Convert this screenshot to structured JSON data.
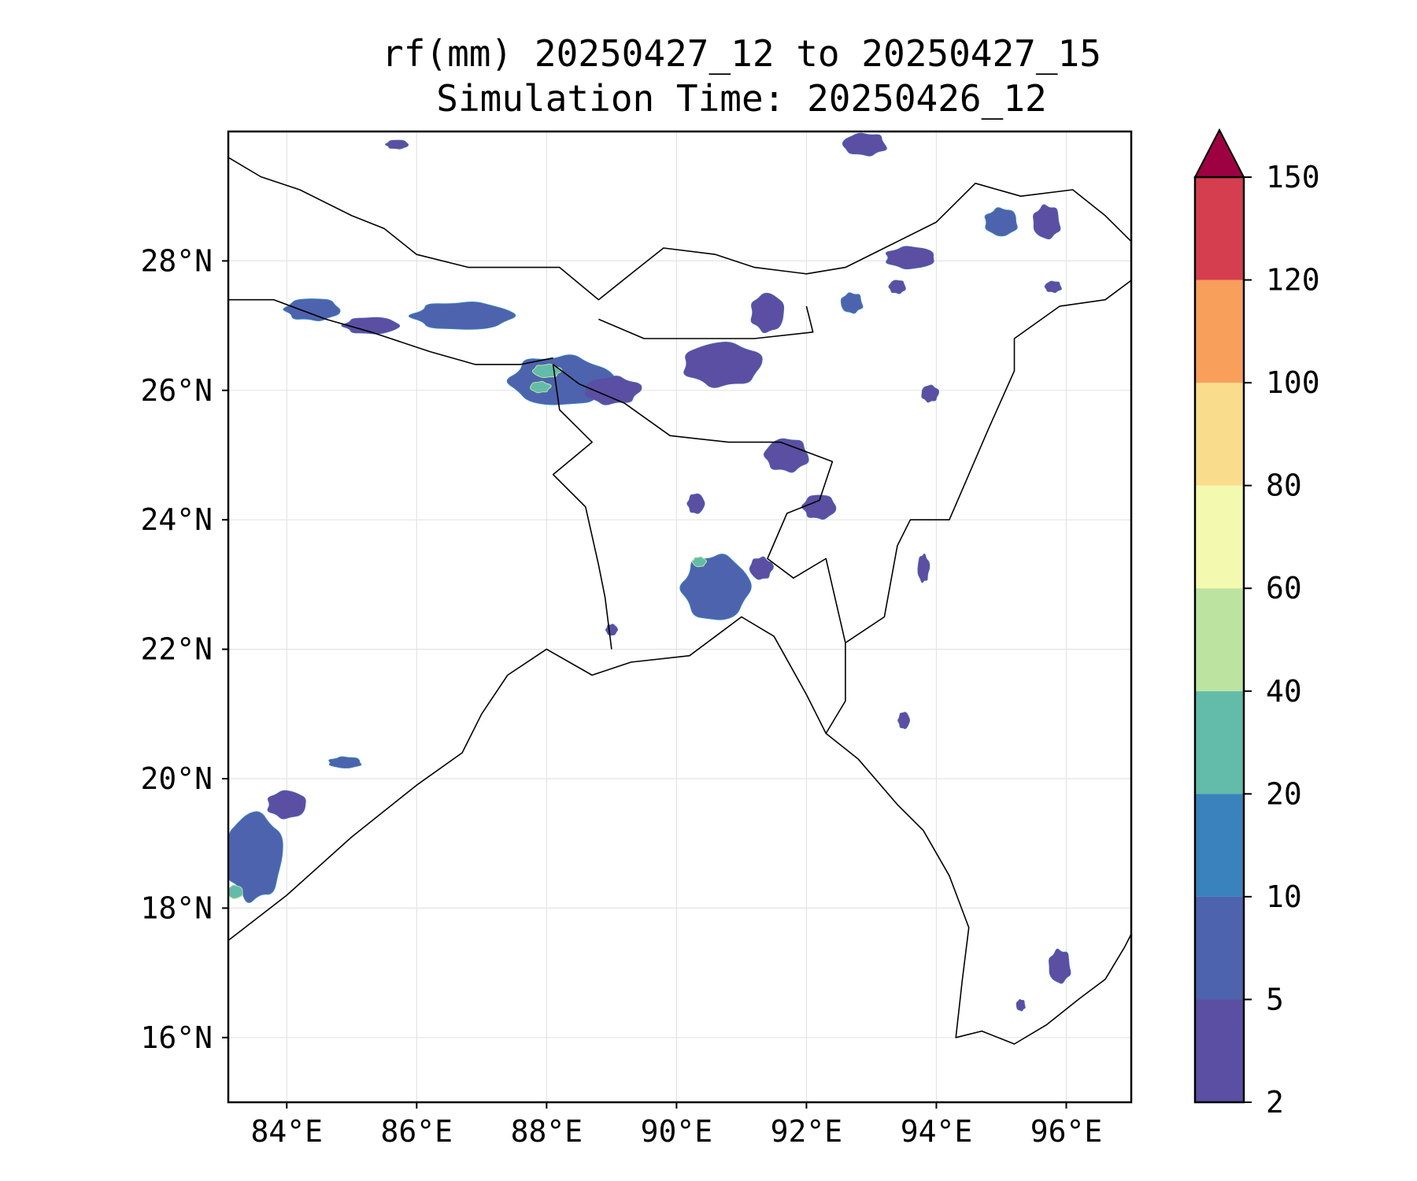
{
  "title": {
    "line1": "rf(mm) 20250427_12 to 20250427_15",
    "line2": "Simulation Time: 20250426_12"
  },
  "map": {
    "lon_range": [
      83.1,
      97.0
    ],
    "lat_range": [
      15.0,
      30.0
    ],
    "lon_ticks": [
      {
        "value": 84,
        "label": "84°E"
      },
      {
        "value": 86,
        "label": "86°E"
      },
      {
        "value": 88,
        "label": "88°E"
      },
      {
        "value": 90,
        "label": "90°E"
      },
      {
        "value": 92,
        "label": "92°E"
      },
      {
        "value": 94,
        "label": "94°E"
      },
      {
        "value": 96,
        "label": "96°E"
      }
    ],
    "lat_ticks": [
      {
        "value": 16,
        "label": "16°N"
      },
      {
        "value": 18,
        "label": "18°N"
      },
      {
        "value": 20,
        "label": "20°N"
      },
      {
        "value": 22,
        "label": "22°N"
      },
      {
        "value": 24,
        "label": "24°N"
      },
      {
        "value": 26,
        "label": "26°N"
      },
      {
        "value": 28,
        "label": "28°N"
      }
    ],
    "gridlines": true,
    "colorbar": {
      "levels": [
        {
          "value": 2,
          "label": "2"
        },
        {
          "value": 5,
          "label": "5"
        },
        {
          "value": 10,
          "label": "10"
        },
        {
          "value": 20,
          "label": "20"
        },
        {
          "value": 40,
          "label": "40"
        },
        {
          "value": 60,
          "label": "60"
        },
        {
          "value": 80,
          "label": "80"
        },
        {
          "value": 100,
          "label": "100"
        },
        {
          "value": 120,
          "label": "120"
        },
        {
          "value": 150,
          "label": "150"
        }
      ],
      "colors": [
        "#5a4fa2",
        "#4d63ad",
        "#3a82bd",
        "#62bca9",
        "#bde3a1",
        "#f3f9ae",
        "#fadd8c",
        "#f89f5c",
        "#d53e4f",
        "#9e0142"
      ],
      "extend": "max"
    },
    "rain_cells": [
      {
        "lon": 84.4,
        "lat": 27.25,
        "rlon": 0.5,
        "rlat": 0.2,
        "level": 1
      },
      {
        "lon": 85.3,
        "lat": 27.0,
        "rlon": 0.5,
        "rlat": 0.15,
        "level": 0
      },
      {
        "lon": 86.7,
        "lat": 27.15,
        "rlon": 0.9,
        "rlat": 0.25,
        "level": 1
      },
      {
        "lon": 88.2,
        "lat": 26.15,
        "rlon": 0.9,
        "rlat": 0.45,
        "level": 1
      },
      {
        "lon": 88.0,
        "lat": 26.3,
        "rlon": 0.25,
        "rlat": 0.12,
        "level": 3
      },
      {
        "lon": 87.9,
        "lat": 26.05,
        "rlon": 0.18,
        "rlat": 0.1,
        "level": 3
      },
      {
        "lon": 89.0,
        "lat": 26.0,
        "rlon": 0.5,
        "rlat": 0.25,
        "level": 0
      },
      {
        "lon": 90.7,
        "lat": 26.4,
        "rlon": 0.7,
        "rlat": 0.4,
        "level": 0
      },
      {
        "lon": 91.4,
        "lat": 27.2,
        "rlon": 0.3,
        "rlat": 0.35,
        "level": 0
      },
      {
        "lon": 93.6,
        "lat": 28.05,
        "rlon": 0.45,
        "rlat": 0.2,
        "level": 0
      },
      {
        "lon": 95.0,
        "lat": 28.6,
        "rlon": 0.3,
        "rlat": 0.25,
        "level": 1
      },
      {
        "lon": 95.7,
        "lat": 28.6,
        "rlon": 0.25,
        "rlat": 0.3,
        "level": 0
      },
      {
        "lon": 92.7,
        "lat": 27.35,
        "rlon": 0.2,
        "rlat": 0.18,
        "level": 1
      },
      {
        "lon": 92.9,
        "lat": 29.8,
        "rlon": 0.4,
        "rlat": 0.2,
        "level": 0
      },
      {
        "lon": 91.7,
        "lat": 25.0,
        "rlon": 0.4,
        "rlat": 0.3,
        "level": 0
      },
      {
        "lon": 92.2,
        "lat": 24.2,
        "rlon": 0.3,
        "rlat": 0.22,
        "level": 0
      },
      {
        "lon": 90.3,
        "lat": 24.25,
        "rlon": 0.15,
        "rlat": 0.18,
        "level": 0
      },
      {
        "lon": 90.6,
        "lat": 22.95,
        "rlon": 0.6,
        "rlat": 0.6,
        "level": 1
      },
      {
        "lon": 90.35,
        "lat": 23.35,
        "rlon": 0.12,
        "rlat": 0.09,
        "level": 3
      },
      {
        "lon": 91.3,
        "lat": 23.25,
        "rlon": 0.2,
        "rlat": 0.2,
        "level": 0
      },
      {
        "lon": 93.8,
        "lat": 23.25,
        "rlon": 0.1,
        "rlat": 0.25,
        "level": 0
      },
      {
        "lon": 93.9,
        "lat": 25.95,
        "rlon": 0.15,
        "rlat": 0.15,
        "level": 0
      },
      {
        "lon": 83.5,
        "lat": 18.8,
        "rlon": 0.5,
        "rlat": 0.8,
        "level": 1
      },
      {
        "lon": 84.0,
        "lat": 19.6,
        "rlon": 0.35,
        "rlat": 0.25,
        "level": 0
      },
      {
        "lon": 83.2,
        "lat": 18.25,
        "rlon": 0.15,
        "rlat": 0.12,
        "level": 3
      },
      {
        "lon": 84.9,
        "lat": 20.25,
        "rlon": 0.3,
        "rlat": 0.1,
        "level": 1
      },
      {
        "lon": 95.9,
        "lat": 17.1,
        "rlon": 0.2,
        "rlat": 0.3,
        "level": 0
      },
      {
        "lon": 95.3,
        "lat": 16.5,
        "rlon": 0.08,
        "rlat": 0.1,
        "level": 0
      },
      {
        "lon": 95.8,
        "lat": 27.6,
        "rlon": 0.15,
        "rlat": 0.1,
        "level": 0
      },
      {
        "lon": 93.4,
        "lat": 27.6,
        "rlon": 0.15,
        "rlat": 0.12,
        "level": 0
      },
      {
        "lon": 85.7,
        "lat": 29.8,
        "rlon": 0.2,
        "rlat": 0.08,
        "level": 0
      },
      {
        "lon": 93.5,
        "lat": 20.9,
        "rlon": 0.1,
        "rlat": 0.15,
        "level": 0
      },
      {
        "lon": 89.0,
        "lat": 22.3,
        "rlon": 0.1,
        "rlat": 0.1,
        "level": 0
      }
    ]
  }
}
